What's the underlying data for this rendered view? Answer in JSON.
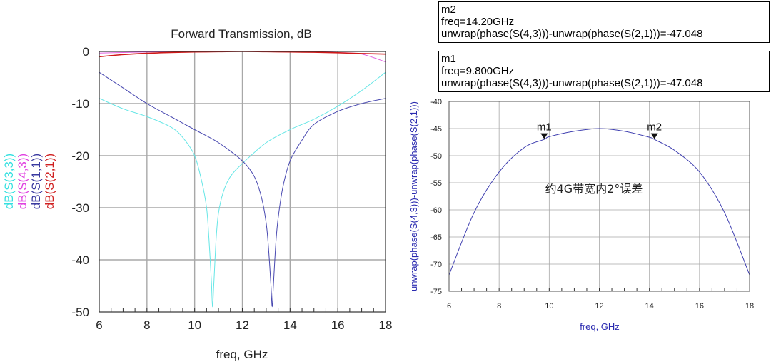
{
  "chart_data": [
    {
      "type": "line",
      "title": "Forward Transmission, dB",
      "xlabel": "freq, GHz",
      "xlim": [
        6,
        18
      ],
      "ylim": [
        -50,
        0
      ],
      "x_ticks": [
        "6",
        "8",
        "10",
        "12",
        "14",
        "16",
        "18"
      ],
      "y_ticks": [
        "0",
        "-10",
        "-20",
        "-30",
        "-40",
        "-50"
      ],
      "grid": true,
      "ylabels": [
        {
          "text": "dB(S(3,3))",
          "color": "#33e0e0"
        },
        {
          "text": "dB(S(4,3))",
          "color": "#e040e0"
        },
        {
          "text": "dB(S(1,1))",
          "color": "#3a3aa0"
        },
        {
          "text": "dB(S(2,1))",
          "color": "#d02020"
        }
      ],
      "series": [
        {
          "label": "dB(S(3,3))",
          "color": "#66e6e6",
          "x": [
            6,
            7,
            8,
            9,
            9.5,
            10,
            10.3,
            10.5,
            10.6,
            10.7,
            10.75,
            10.8,
            10.9,
            11.0,
            11.2,
            11.5,
            12,
            13,
            14,
            15,
            16,
            17,
            18
          ],
          "y": [
            -9,
            -11,
            -12.5,
            -14.5,
            -16.5,
            -20,
            -25,
            -30,
            -36,
            -44,
            -49,
            -45,
            -36,
            -31,
            -27,
            -24,
            -21.5,
            -17.5,
            -15,
            -13,
            -10.5,
            -7.5,
            -4
          ]
        },
        {
          "label": "dB(S(4,3))",
          "color": "#e060e0",
          "x": [
            6,
            7,
            8,
            9,
            10,
            11,
            12,
            13,
            14,
            15,
            16,
            17,
            18
          ],
          "y": [
            -0.3,
            -0.2,
            -0.1,
            -0.05,
            0,
            0,
            0,
            0,
            -0.05,
            -0.1,
            -0.2,
            -0.5,
            -2
          ]
        },
        {
          "label": "dB(S(1,1))",
          "color": "#4848b0",
          "x": [
            6,
            7,
            8,
            9,
            10,
            11,
            12,
            12.5,
            12.8,
            13.0,
            13.1,
            13.2,
            13.25,
            13.3,
            13.4,
            13.5,
            13.7,
            14,
            14.5,
            15,
            16,
            17,
            18
          ],
          "y": [
            -4,
            -7,
            -10,
            -12.5,
            -15,
            -17.5,
            -21,
            -24,
            -28,
            -33,
            -38,
            -45,
            -49,
            -45,
            -37,
            -32,
            -26,
            -21,
            -17,
            -14,
            -11.5,
            -10,
            -9
          ]
        },
        {
          "label": "dB(S(2,1))",
          "color": "#d01818",
          "x": [
            6,
            7,
            8,
            9,
            10,
            11,
            12,
            13,
            14,
            15,
            16,
            17,
            18
          ],
          "y": [
            -1,
            -0.6,
            -0.35,
            -0.2,
            -0.1,
            -0.05,
            0,
            -0.05,
            -0.1,
            -0.15,
            -0.25,
            -0.4,
            -0.5
          ]
        }
      ]
    },
    {
      "type": "line",
      "xlabel": "freq, GHz",
      "ylabel": "unwrap(phase(S(4,3)))-unwrap(phase(S(2,1)))",
      "xlim": [
        6,
        18
      ],
      "ylim": [
        -75,
        -40
      ],
      "x_ticks": [
        "6",
        "8",
        "10",
        "12",
        "14",
        "16",
        "18"
      ],
      "y_ticks": [
        "-40",
        "-45",
        "-50",
        "-55",
        "-60",
        "-65",
        "-70",
        "-75"
      ],
      "grid": true,
      "series": [
        {
          "label": "unwrap(phase(S(4,3)))-unwrap(phase(S(2,1)))",
          "color": "#4040b0",
          "x": [
            6,
            7,
            8,
            9,
            9.8,
            10,
            11,
            12,
            13,
            14,
            14.2,
            15,
            16,
            17,
            18
          ],
          "y": [
            -72,
            -60.5,
            -53,
            -48.5,
            -47.0,
            -46.5,
            -45.5,
            -45,
            -45.5,
            -46.6,
            -47.0,
            -49,
            -53,
            -60.5,
            -72
          ]
        }
      ],
      "markers": [
        {
          "name": "m1",
          "x": 9.8,
          "y": -47.048
        },
        {
          "name": "m2",
          "x": 14.2,
          "y": -47.048
        }
      ],
      "annotation": "约4G带宽内2°误差"
    }
  ],
  "marker_readouts": [
    {
      "name": "m2",
      "freq": "freq=14.20GHz",
      "expr": "unwrap(phase(S(4,3)))-unwrap(phase(S(2,1)))=-47.048"
    },
    {
      "name": "m1",
      "freq": "freq=9.800GHz",
      "expr": "unwrap(phase(S(4,3)))-unwrap(phase(S(2,1)))=-47.048"
    }
  ]
}
